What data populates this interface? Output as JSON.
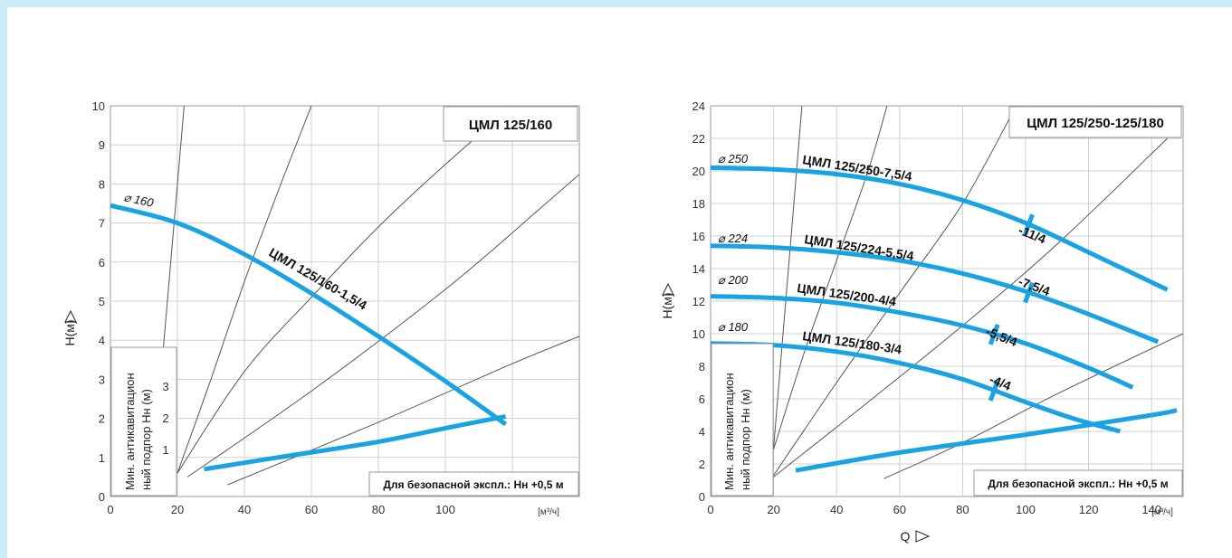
{
  "colors": {
    "pump_curve": "#1aa3e3",
    "grid": "#d0d0d0",
    "system_curve": "#555555",
    "frame": "#c9ecf8"
  },
  "chart_data": [
    {
      "type": "line",
      "title": "ЦМЛ 125/160",
      "ylabel": "H(м)",
      "xunit": "[м³/ч]",
      "xlim": [
        0,
        140
      ],
      "ylim": [
        0,
        10
      ],
      "x_ticks": [
        "0",
        "20",
        "40",
        "60",
        "80",
        "100"
      ],
      "y_ticks": [
        "0",
        "1",
        "2",
        "3",
        "4",
        "5",
        "6",
        "7",
        "8",
        "9",
        "10"
      ],
      "grid": true,
      "series": [
        {
          "name": "ЦМЛ 125/160-1,5/4",
          "diameter_label": "⌀ 160",
          "x": [
            0,
            20,
            40,
            60,
            80,
            100,
            118
          ],
          "y": [
            7.45,
            7.0,
            6.2,
            5.2,
            4.1,
            2.95,
            1.85
          ]
        }
      ],
      "npsh": {
        "label_line1": "Мин. антикавитацион",
        "label_line2": "ный подпор   Нн (м)",
        "scale_ticks": [
          "1",
          "2",
          "3"
        ],
        "x": [
          28,
          50,
          80,
          100,
          118
        ],
        "y": [
          0.7,
          1.0,
          1.4,
          1.75,
          2.05
        ]
      },
      "system_curves": [
        {
          "x": [
            14,
            16,
            18,
            20,
            22
          ],
          "y": [
            2,
            4,
            6,
            8,
            10
          ]
        },
        {
          "x": [
            20,
            30,
            40,
            50,
            60
          ],
          "y": [
            0.6,
            3,
            5.5,
            7.8,
            10
          ]
        },
        {
          "x": [
            20,
            40,
            60,
            80,
            100,
            120
          ],
          "y": [
            0.6,
            3.2,
            5.1,
            6.9,
            8.5,
            10
          ]
        },
        {
          "x": [
            23,
            60,
            100,
            130,
            150
          ],
          "y": [
            0.5,
            2.7,
            5.3,
            7.5,
            9
          ]
        },
        {
          "x": [
            35,
            80,
            120,
            140
          ],
          "y": [
            0.3,
            1.9,
            3.4,
            4.1
          ]
        }
      ],
      "note": "Для безопасной экспл.: Нн +0,5 м"
    },
    {
      "type": "line",
      "title": "ЦМЛ 125/250-125/180",
      "ylabel": "H(м)",
      "xlabel": "Q",
      "xunit": "[м³/ч]",
      "xlim": [
        0,
        150
      ],
      "ylim": [
        0,
        24
      ],
      "x_ticks": [
        "0",
        "20",
        "40",
        "60",
        "80",
        "100",
        "120",
        "140"
      ],
      "y_ticks": [
        "0",
        "2",
        "4",
        "6",
        "8",
        "10",
        "12",
        "14",
        "16",
        "18",
        "20",
        "22",
        "24"
      ],
      "grid": true,
      "series": [
        {
          "name": "ЦМЛ 125/250-7,5/4",
          "diameter_label": "⌀ 250",
          "ext_label": "-11/4",
          "ext_x": 101,
          "x": [
            0,
            20,
            40,
            60,
            80,
            100,
            120,
            145
          ],
          "y": [
            20.2,
            20.1,
            19.8,
            19.2,
            18.2,
            16.8,
            15.0,
            12.7
          ]
        },
        {
          "name": "ЦМЛ 125/224-5,5/4",
          "diameter_label": "⌀ 224",
          "ext_label": "-7,5/4",
          "ext_x": 101,
          "x": [
            0,
            20,
            40,
            60,
            80,
            100,
            120,
            142
          ],
          "y": [
            15.4,
            15.3,
            15.0,
            14.5,
            13.7,
            12.6,
            11.2,
            9.5
          ]
        },
        {
          "name": "ЦМЛ 125/200-4/4",
          "diameter_label": "⌀ 200",
          "ext_label": "-5,5/4",
          "ext_x": 90,
          "x": [
            0,
            20,
            40,
            60,
            80,
            100,
            120,
            134
          ],
          "y": [
            12.3,
            12.2,
            11.9,
            11.3,
            10.5,
            9.4,
            7.9,
            6.7
          ]
        },
        {
          "name": "ЦМЛ 125/180-3/4",
          "diameter_label": "⌀ 180",
          "ext_label": "-4/4",
          "ext_x": 90,
          "x": [
            0,
            20,
            40,
            60,
            80,
            100,
            115,
            130
          ],
          "y": [
            9.4,
            9.3,
            8.9,
            8.2,
            7.2,
            5.8,
            4.8,
            4.0
          ]
        }
      ],
      "npsh": {
        "label_line1": "Мин. антикавитацион",
        "label_line2": "ный подпор   Нн (м)",
        "x": [
          27,
          60,
          100,
          140,
          148
        ],
        "y": [
          1.6,
          2.7,
          3.8,
          5.0,
          5.3
        ]
      },
      "system_curves": [
        {
          "x": [
            20,
            23,
            26,
            29
          ],
          "y": [
            3,
            10,
            17,
            24
          ]
        },
        {
          "x": [
            20,
            30,
            40,
            50,
            56
          ],
          "y": [
            2.9,
            9,
            14.5,
            20,
            24
          ]
        },
        {
          "x": [
            20,
            40,
            60,
            80,
            97
          ],
          "y": [
            1.3,
            7,
            12.5,
            18,
            24
          ]
        },
        {
          "x": [
            20,
            50,
            80,
            110,
            145
          ],
          "y": [
            1.2,
            5.8,
            10.5,
            15.5,
            22
          ]
        },
        {
          "x": [
            55,
            80,
            110,
            150
          ],
          "y": [
            1.1,
            3.3,
            6.3,
            10
          ]
        }
      ],
      "note": "Для безопасной экспл.: Нн +0,5 м"
    }
  ]
}
